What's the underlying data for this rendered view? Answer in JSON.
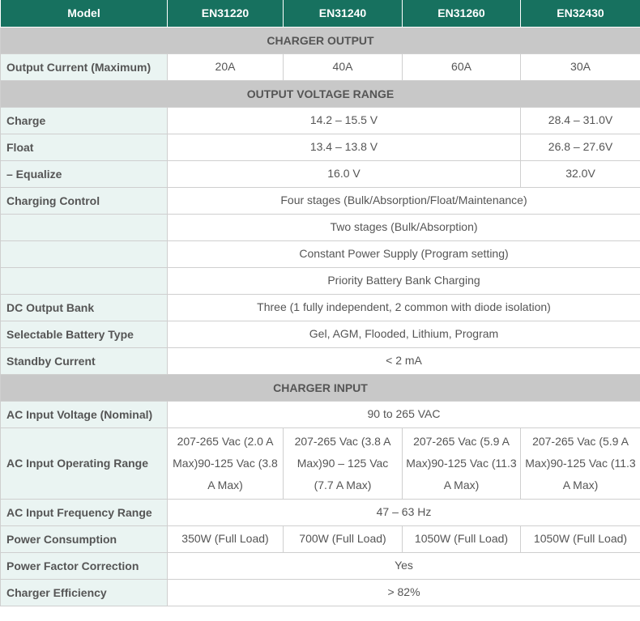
{
  "colors": {
    "header": "#17715f",
    "section": "#c8c8c8",
    "label_bg": "#eaf4f2"
  },
  "header": [
    "Model",
    "EN31220",
    "EN31240",
    "EN31260",
    "EN32430"
  ],
  "rows": [
    {
      "type": "section",
      "text": "CHARGER OUTPUT"
    },
    {
      "label": "Output Current (Maximum)",
      "cells": [
        {
          "text": "20A",
          "span": 1
        },
        {
          "text": "40A",
          "span": 1
        },
        {
          "text": "60A",
          "span": 1
        },
        {
          "text": "30A",
          "span": 1
        }
      ]
    },
    {
      "type": "section",
      "text": "OUTPUT VOLTAGE RANGE"
    },
    {
      "label": "Charge",
      "cells": [
        {
          "text": "14.2 – 15.5 V",
          "span": 3
        },
        {
          "text": "28.4 – 31.0V",
          "span": 1
        }
      ]
    },
    {
      "label": "Float",
      "cells": [
        {
          "text": "13.4 – 13.8 V",
          "span": 3
        },
        {
          "text": "26.8 – 27.6V",
          "span": 1
        }
      ]
    },
    {
      "label": "– Equalize",
      "cells": [
        {
          "text": "16.0 V",
          "span": 3
        },
        {
          "text": "32.0V",
          "span": 1
        }
      ]
    },
    {
      "label": "Charging Control",
      "cells": [
        {
          "text": "Four stages (Bulk/Absorption/Float/Maintenance)",
          "span": 4
        }
      ]
    },
    {
      "label": "",
      "cells": [
        {
          "text": "Two stages (Bulk/Absorption)",
          "span": 4
        }
      ]
    },
    {
      "label": "",
      "cells": [
        {
          "text": "Constant Power Supply (Program setting)",
          "span": 4
        }
      ]
    },
    {
      "label": "",
      "cells": [
        {
          "text": "Priority Battery Bank Charging",
          "span": 4
        }
      ]
    },
    {
      "label": "DC Output Bank",
      "cells": [
        {
          "text": "Three (1 fully independent, 2 common with diode isolation)",
          "span": 4
        }
      ]
    },
    {
      "label": "Selectable Battery Type",
      "cells": [
        {
          "text": "Gel, AGM, Flooded, Lithium, Program",
          "span": 4
        }
      ]
    },
    {
      "label": "Standby Current",
      "cells": [
        {
          "text": "< 2 mA",
          "span": 4
        }
      ]
    },
    {
      "type": "section",
      "text": "CHARGER INPUT"
    },
    {
      "label": "AC Input Voltage (Nominal)",
      "cells": [
        {
          "text": "90 to 265 VAC",
          "span": 4
        }
      ]
    },
    {
      "label": "AC Input Operating Range",
      "tall": true,
      "cells": [
        {
          "text": "207-265 Vac (2.0 A Max)90-125 Vac (3.8 A Max)",
          "span": 1
        },
        {
          "text": "207-265 Vac (3.8 A Max)90 – 125 Vac (7.7 A Max)",
          "span": 1
        },
        {
          "text": "207-265 Vac (5.9 A Max)90-125 Vac (11.3 A Max)",
          "span": 1
        },
        {
          "text": "207-265 Vac (5.9 A Max)90-125 Vac (11.3 A Max)",
          "span": 1
        }
      ]
    },
    {
      "label": "AC Input Frequency Range",
      "cells": [
        {
          "text": "47 – 63 Hz",
          "span": 4
        }
      ]
    },
    {
      "label": "Power Consumption",
      "cells": [
        {
          "text": "350W (Full Load)",
          "span": 1
        },
        {
          "text": "700W (Full Load)",
          "span": 1
        },
        {
          "text": "1050W (Full Load)",
          "span": 1
        },
        {
          "text": "1050W (Full Load)",
          "span": 1
        }
      ]
    },
    {
      "label": "Power Factor Correction",
      "cells": [
        {
          "text": "Yes",
          "span": 4
        }
      ]
    },
    {
      "label": "Charger Efficiency",
      "cells": [
        {
          "text": "> 82%",
          "span": 4
        }
      ]
    }
  ]
}
